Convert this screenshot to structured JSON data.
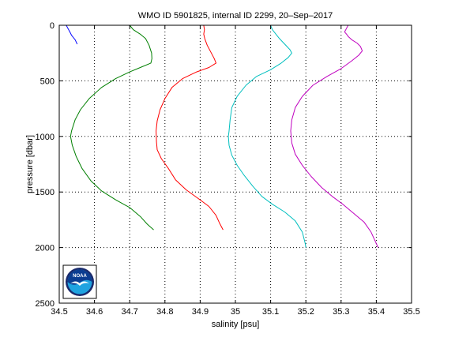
{
  "chart_data": {
    "type": "line",
    "title": "WMO ID 5901825, internal ID 2299, 20–Sep–2017",
    "xlabel": "salinity [psu]",
    "ylabel": "pressure [dbar]",
    "xlim": [
      34.5,
      35.5
    ],
    "ylim": [
      0,
      2500
    ],
    "y_reversed": true,
    "grid": true,
    "grid_style": "dotted",
    "x_ticks": [
      "34.5",
      "34.6",
      "34.7",
      "34.8",
      "34.9",
      "35",
      "35.1",
      "35.2",
      "35.3",
      "35.4",
      "35.5"
    ],
    "y_ticks": [
      "0",
      "500",
      "1000",
      "1500",
      "2000",
      "2500"
    ],
    "logo": {
      "text": "NOAA",
      "colors": {
        "outer": "#ffffff",
        "ring": "#1a2a6c",
        "top": "#0b3d91",
        "bottom": "#1fa3e0"
      }
    },
    "series": [
      {
        "color": "#0000ff",
        "x_offset": 0.0,
        "points": [
          [
            34.52,
            0
          ],
          [
            34.525,
            30
          ],
          [
            34.53,
            60
          ],
          [
            34.535,
            90
          ],
          [
            34.54,
            110
          ],
          [
            34.545,
            130
          ],
          [
            34.548,
            150
          ],
          [
            34.551,
            170
          ]
        ]
      },
      {
        "color": "#007f00",
        "x_offset": 0.0,
        "points": [
          [
            34.7,
            0
          ],
          [
            34.71,
            40
          ],
          [
            34.73,
            80
          ],
          [
            34.745,
            120
          ],
          [
            34.755,
            180
          ],
          [
            34.762,
            250
          ],
          [
            34.763,
            300
          ],
          [
            34.76,
            340
          ],
          [
            34.73,
            380
          ],
          [
            34.7,
            420
          ],
          [
            34.66,
            480
          ],
          [
            34.62,
            560
          ],
          [
            34.585,
            660
          ],
          [
            34.56,
            760
          ],
          [
            34.545,
            850
          ],
          [
            34.535,
            950
          ],
          [
            34.532,
            1000
          ],
          [
            34.537,
            1080
          ],
          [
            34.548,
            1180
          ],
          [
            34.565,
            1290
          ],
          [
            34.59,
            1400
          ],
          [
            34.62,
            1490
          ],
          [
            34.66,
            1570
          ],
          [
            34.7,
            1640
          ],
          [
            34.73,
            1720
          ],
          [
            34.75,
            1790
          ],
          [
            34.768,
            1840
          ]
        ]
      },
      {
        "color": "#ff0000",
        "x_offset": 0.0,
        "points": [
          [
            34.91,
            0
          ],
          [
            34.912,
            40
          ],
          [
            34.91,
            80
          ],
          [
            34.913,
            120
          ],
          [
            34.92,
            180
          ],
          [
            34.93,
            240
          ],
          [
            34.94,
            300
          ],
          [
            34.945,
            340
          ],
          [
            34.925,
            380
          ],
          [
            34.89,
            420
          ],
          [
            34.85,
            480
          ],
          [
            34.82,
            560
          ],
          [
            34.8,
            660
          ],
          [
            34.786,
            760
          ],
          [
            34.778,
            860
          ],
          [
            34.775,
            950
          ],
          [
            34.776,
            1050
          ],
          [
            34.778,
            1120
          ],
          [
            34.79,
            1200
          ],
          [
            34.81,
            1290
          ],
          [
            34.83,
            1390
          ],
          [
            34.86,
            1480
          ],
          [
            34.895,
            1560
          ],
          [
            34.925,
            1630
          ],
          [
            34.945,
            1710
          ],
          [
            34.955,
            1780
          ],
          [
            34.965,
            1840
          ]
        ]
      },
      {
        "color": "#00bfbf",
        "x_offset": 0.0,
        "points": [
          [
            35.1,
            0
          ],
          [
            35.105,
            40
          ],
          [
            35.115,
            80
          ],
          [
            35.125,
            120
          ],
          [
            35.14,
            170
          ],
          [
            35.155,
            220
          ],
          [
            35.16,
            250
          ],
          [
            35.15,
            290
          ],
          [
            35.13,
            340
          ],
          [
            35.1,
            400
          ],
          [
            35.06,
            460
          ],
          [
            35.03,
            540
          ],
          [
            35.005,
            640
          ],
          [
            34.99,
            740
          ],
          [
            34.985,
            850
          ],
          [
            34.982,
            950
          ],
          [
            34.98,
            1000
          ],
          [
            34.982,
            1080
          ],
          [
            34.99,
            1170
          ],
          [
            35.005,
            1260
          ],
          [
            35.025,
            1350
          ],
          [
            35.05,
            1450
          ],
          [
            35.075,
            1540
          ],
          [
            35.105,
            1610
          ],
          [
            35.14,
            1680
          ],
          [
            35.17,
            1760
          ],
          [
            35.19,
            1860
          ],
          [
            35.198,
            1960
          ],
          [
            35.2,
            2000
          ]
        ]
      },
      {
        "color": "#bf00bf",
        "x_offset": 0.0,
        "points": [
          [
            35.32,
            0
          ],
          [
            35.315,
            30
          ],
          [
            35.31,
            60
          ],
          [
            35.318,
            90
          ],
          [
            35.32,
            100
          ],
          [
            35.33,
            130
          ],
          [
            35.345,
            160
          ],
          [
            35.355,
            190
          ],
          [
            35.36,
            230
          ],
          [
            35.35,
            270
          ],
          [
            35.33,
            320
          ],
          [
            35.3,
            390
          ],
          [
            35.26,
            460
          ],
          [
            35.22,
            540
          ],
          [
            35.19,
            640
          ],
          [
            35.17,
            740
          ],
          [
            35.16,
            850
          ],
          [
            35.157,
            950
          ],
          [
            35.16,
            1060
          ],
          [
            35.17,
            1160
          ],
          [
            35.19,
            1260
          ],
          [
            35.215,
            1360
          ],
          [
            35.245,
            1460
          ],
          [
            35.275,
            1540
          ],
          [
            35.305,
            1610
          ],
          [
            35.335,
            1690
          ],
          [
            35.365,
            1770
          ],
          [
            35.385,
            1860
          ],
          [
            35.398,
            1950
          ],
          [
            35.405,
            2000
          ]
        ]
      }
    ]
  }
}
